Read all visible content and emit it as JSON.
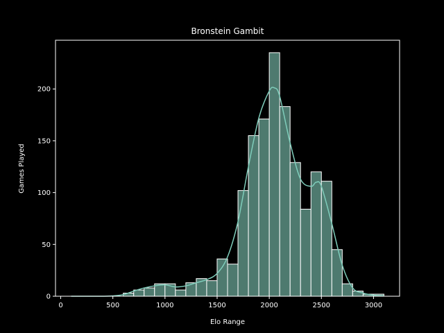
{
  "chart_data": {
    "type": "bar",
    "title": "Bronstein Gambit",
    "xlabel": "Elo Range",
    "ylabel": "Games Played",
    "xlim": [
      -50,
      3250
    ],
    "ylim": [
      0,
      247
    ],
    "bin_width": 100,
    "bin_starts": [
      600,
      700,
      800,
      900,
      1000,
      1100,
      1200,
      1300,
      1400,
      1500,
      1600,
      1700,
      1800,
      1900,
      2000,
      2100,
      2200,
      2300,
      2400,
      2500,
      2600,
      2700,
      2800,
      2900,
      3000
    ],
    "values": [
      3,
      6,
      8,
      12,
      12,
      6,
      13,
      17,
      15,
      36,
      31,
      102,
      155,
      171,
      235,
      183,
      129,
      84,
      120,
      111,
      45,
      12,
      5,
      2,
      2
    ],
    "kde": {
      "x": [
        100,
        200,
        300,
        400,
        500,
        600,
        700,
        800,
        900,
        1000,
        1100,
        1200,
        1300,
        1400,
        1500,
        1600,
        1700,
        1800,
        1900,
        2000,
        2050,
        2100,
        2200,
        2300,
        2400,
        2450,
        2500,
        2600,
        2700,
        2800,
        2900,
        3000,
        3100
      ],
      "y": [
        0,
        0,
        0,
        0,
        0.3,
        1.5,
        5,
        8,
        10,
        11,
        9,
        10,
        13,
        16,
        22,
        38,
        72,
        125,
        172,
        198,
        201,
        193,
        148,
        113,
        106,
        110,
        106,
        70,
        30,
        8,
        3,
        1,
        0.3
      ]
    },
    "x_ticks": [
      0,
      500,
      1000,
      1500,
      2000,
      2500,
      3000
    ],
    "y_ticks": [
      0,
      50,
      100,
      150,
      200
    ],
    "grid": false,
    "colors": {
      "bar_fill": "#4e7a6f",
      "bar_edge": "#ffffff",
      "kde_line": "#7fcdbb",
      "axes": "#ffffff",
      "background": "#000000"
    }
  }
}
